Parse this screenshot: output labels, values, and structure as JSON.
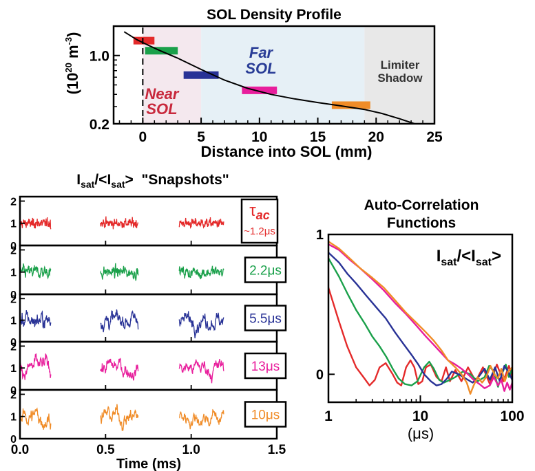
{
  "chart_data": [
    {
      "type": "line",
      "title": "SOL Density Profile",
      "xlabel": "Distance into SOL (mm)",
      "ylabel": "(10",
      "ylabel_sup": "20",
      "ylabel_unit": " m",
      "ylabel_unit_sup": "-3",
      "ylabel_close": ")",
      "xlim": [
        -2.5,
        25
      ],
      "ylim": [
        0.2,
        2.0
      ],
      "y_scale": "log",
      "x_ticks": [
        0,
        5,
        10,
        15,
        20,
        25
      ],
      "x_tick_labels": [
        "0",
        "5",
        "10",
        "15",
        "20",
        "25"
      ],
      "y_ticks": [
        0.2,
        1.0
      ],
      "y_tick_labels": [
        "0.2",
        "1.0"
      ],
      "regions": [
        {
          "x0": 0,
          "x1": 5,
          "line1": "Near",
          "line2": "SOL",
          "fill": "#f4e8ee",
          "text_color": "#c8283c"
        },
        {
          "x0": 5,
          "x1": 19,
          "line1": "Far",
          "line2": "SOL",
          "fill": "#e6f0f6",
          "text_color": "#283c96"
        },
        {
          "x0": 19,
          "x1": 25,
          "line1": "Limiter",
          "line2": "Shadow",
          "fill": "#e8e8e8",
          "text_color": "#333333"
        }
      ],
      "separatrix_x": 0,
      "series": [
        {
          "x": [
            -1.6,
            -0.5,
            0.5,
            1.5,
            3,
            5,
            7,
            9,
            11,
            13,
            15,
            17,
            19,
            20.5,
            22,
            23.3
          ],
          "y": [
            1.75,
            1.45,
            1.27,
            1.12,
            0.94,
            0.72,
            0.56,
            0.46,
            0.4,
            0.36,
            0.33,
            0.305,
            0.28,
            0.255,
            0.225,
            0.2
          ],
          "color": "#000000"
        }
      ],
      "markers": [
        {
          "x0": -0.8,
          "x1": 1.0,
          "y": 1.42,
          "color": "#e42a2a"
        },
        {
          "x0": 0.2,
          "x1": 3.0,
          "y": 1.12,
          "color": "#1aa04a"
        },
        {
          "x0": 3.5,
          "x1": 6.5,
          "y": 0.63,
          "color": "#283296"
        },
        {
          "x0": 8.5,
          "x1": 11.5,
          "y": 0.44,
          "color": "#e81e9c"
        },
        {
          "x0": 16.2,
          "x1": 19.5,
          "y": 0.31,
          "color": "#f08c28"
        }
      ]
    },
    {
      "type": "line",
      "title": "Isat/<Isat>  \"Snapshots\"",
      "title_parts": [
        "I",
        "sat",
        "/<I",
        "sat",
        ">  \"Snapshots\""
      ],
      "xlabel": "Time (ms)",
      "xlim": [
        0,
        1.5
      ],
      "x_ticks": [
        0,
        0.5,
        1.0,
        1.5
      ],
      "x_tick_labels": [
        "0.0",
        "0.5",
        "1.0",
        "1.5"
      ],
      "ylim": [
        0,
        2.2
      ],
      "y_ticks": [
        0,
        1,
        2
      ],
      "y_tick_labels": [
        "0",
        "1",
        "2"
      ],
      "windows": [
        [
          0.0,
          0.18
        ],
        [
          0.47,
          0.69
        ],
        [
          0.93,
          1.19
        ]
      ],
      "panels": [
        {
          "color": "#e42a2a",
          "sigma": 0.15,
          "corr": 0.2,
          "tau_symbol": "τ",
          "tau_sub": "ac",
          "label": "~1.2μs"
        },
        {
          "color": "#1aa04a",
          "sigma": 0.2,
          "corr": 0.6,
          "label": "2.2μs"
        },
        {
          "color": "#283296",
          "sigma": 0.3,
          "corr": 0.8,
          "label": "5.5μs"
        },
        {
          "color": "#e81e9c",
          "sigma": 0.38,
          "corr": 0.9,
          "label": "13μs"
        },
        {
          "color": "#f08c28",
          "sigma": 0.38,
          "corr": 0.9,
          "label": "10μs"
        }
      ]
    },
    {
      "type": "line",
      "title_line1": "Auto-Correlation",
      "title_line2": "Functions",
      "xlabel": "(μs)",
      "x_scale": "log",
      "xlim": [
        1,
        100
      ],
      "x_ticks": [
        1,
        10,
        100
      ],
      "x_tick_labels": [
        "1",
        "10",
        "100"
      ],
      "ylim": [
        -0.2,
        1.0
      ],
      "y_ticks": [
        0,
        1
      ],
      "y_tick_labels": [
        "0",
        "1"
      ],
      "legend_parts": [
        "I",
        "sat",
        "/<I",
        "sat",
        ">"
      ],
      "series": [
        {
          "color": "#e42a2a",
          "points": [
            [
              1,
              0.62
            ],
            [
              1.3,
              0.38
            ],
            [
              1.6,
              0.2
            ],
            [
              2,
              0.05
            ],
            [
              2.4,
              -0.02
            ],
            [
              2.8,
              -0.08
            ],
            [
              3.2,
              -0.04
            ],
            [
              3.6,
              0.05
            ],
            [
              4.2,
              0.08
            ],
            [
              5,
              0.0
            ],
            [
              5.6,
              -0.06
            ],
            [
              6.2,
              -0.08
            ],
            [
              7,
              0.05
            ],
            [
              7.8,
              0.1
            ],
            [
              8.6,
              0.05
            ],
            [
              9.5,
              -0.07
            ],
            [
              10.5,
              -0.05
            ],
            [
              11.5,
              0.05
            ],
            [
              13,
              0.07
            ],
            [
              15,
              -0.02
            ],
            [
              17,
              -0.05
            ],
            [
              19,
              0.05
            ],
            [
              21,
              -0.05
            ],
            [
              24,
              0.03
            ],
            [
              28,
              -0.05
            ],
            [
              33,
              0.05
            ],
            [
              40,
              -0.05
            ],
            [
              48,
              0.05
            ],
            [
              57,
              -0.07
            ],
            [
              68,
              0.07
            ],
            [
              80,
              -0.05
            ],
            [
              92,
              0.06
            ],
            [
              100,
              -0.02
            ]
          ]
        },
        {
          "color": "#1aa04a",
          "points": [
            [
              1,
              0.83
            ],
            [
              1.3,
              0.7
            ],
            [
              1.6,
              0.58
            ],
            [
              2,
              0.46
            ],
            [
              2.5,
              0.36
            ],
            [
              3,
              0.27
            ],
            [
              3.6,
              0.2
            ],
            [
              4.3,
              0.12
            ],
            [
              5,
              0.04
            ],
            [
              5.8,
              -0.03
            ],
            [
              6.8,
              -0.07
            ],
            [
              8,
              -0.08
            ],
            [
              9.3,
              -0.05
            ],
            [
              11,
              0.05
            ],
            [
              12.5,
              0.09
            ],
            [
              14,
              0.04
            ],
            [
              16,
              -0.04
            ],
            [
              18,
              -0.06
            ],
            [
              21,
              -0.04
            ],
            [
              24,
              -0.02
            ],
            [
              29,
              0.02
            ],
            [
              35,
              0.0
            ],
            [
              42,
              -0.05
            ],
            [
              50,
              -0.02
            ],
            [
              56,
              0.06
            ],
            [
              63,
              0.02
            ],
            [
              70,
              -0.09
            ],
            [
              77,
              0.0
            ],
            [
              85,
              0.07
            ],
            [
              92,
              -0.02
            ],
            [
              100,
              0.04
            ]
          ]
        },
        {
          "color": "#283296",
          "points": [
            [
              1,
              0.87
            ],
            [
              1.3,
              0.8
            ],
            [
              1.6,
              0.72
            ],
            [
              2,
              0.65
            ],
            [
              2.6,
              0.56
            ],
            [
              3.3,
              0.48
            ],
            [
              4.2,
              0.4
            ],
            [
              5.3,
              0.3
            ],
            [
              6.5,
              0.22
            ],
            [
              8,
              0.14
            ],
            [
              9.5,
              0.07
            ],
            [
              11,
              0.0
            ],
            [
              13,
              -0.05
            ],
            [
              15,
              -0.08
            ],
            [
              17,
              -0.07
            ],
            [
              19.5,
              -0.03
            ],
            [
              22,
              0.02
            ],
            [
              26,
              0.0
            ],
            [
              31,
              -0.03
            ],
            [
              37,
              -0.06
            ],
            [
              44,
              -0.01
            ],
            [
              50,
              0.04
            ],
            [
              57,
              -0.04
            ],
            [
              65,
              0.05
            ],
            [
              73,
              -0.05
            ],
            [
              82,
              0.06
            ],
            [
              90,
              0.02
            ],
            [
              100,
              -0.04
            ]
          ]
        },
        {
          "color": "#e81e9c",
          "points": [
            [
              1,
              0.93
            ],
            [
              1.3,
              0.89
            ],
            [
              1.7,
              0.82
            ],
            [
              2.2,
              0.76
            ],
            [
              3,
              0.68
            ],
            [
              4,
              0.6
            ],
            [
              5.3,
              0.51
            ],
            [
              7,
              0.43
            ],
            [
              9,
              0.35
            ],
            [
              11.5,
              0.27
            ],
            [
              14,
              0.21
            ],
            [
              17,
              0.15
            ],
            [
              20,
              0.1
            ],
            [
              24,
              0.07
            ],
            [
              28,
              0.04
            ],
            [
              33,
              0.0
            ],
            [
              38,
              -0.04
            ],
            [
              44,
              -0.07
            ],
            [
              50,
              -0.1
            ],
            [
              57,
              -0.08
            ],
            [
              63,
              -0.02
            ],
            [
              70,
              -0.08
            ],
            [
              76,
              -0.04
            ],
            [
              82,
              -0.12
            ],
            [
              88,
              -0.06
            ],
            [
              94,
              -0.11
            ],
            [
              100,
              -0.06
            ]
          ]
        },
        {
          "color": "#f08c28",
          "points": [
            [
              1,
              0.95
            ],
            [
              1.3,
              0.9
            ],
            [
              1.7,
              0.83
            ],
            [
              2.2,
              0.76
            ],
            [
              3,
              0.69
            ],
            [
              4,
              0.62
            ],
            [
              5.3,
              0.53
            ],
            [
              7,
              0.44
            ],
            [
              9,
              0.37
            ],
            [
              11.5,
              0.3
            ],
            [
              14,
              0.24
            ],
            [
              17,
              0.17
            ],
            [
              20,
              0.1
            ],
            [
              24,
              0.05
            ],
            [
              28,
              0.0
            ],
            [
              32,
              -0.06
            ],
            [
              35,
              -0.14
            ],
            [
              38,
              -0.08
            ],
            [
              42,
              -0.02
            ],
            [
              47,
              -0.06
            ],
            [
              52,
              -0.02
            ],
            [
              58,
              0.06
            ],
            [
              64,
              0.0
            ],
            [
              70,
              -0.03
            ],
            [
              76,
              0.04
            ],
            [
              83,
              -0.05
            ],
            [
              90,
              0.02
            ],
            [
              100,
              0.05
            ]
          ]
        }
      ]
    }
  ]
}
